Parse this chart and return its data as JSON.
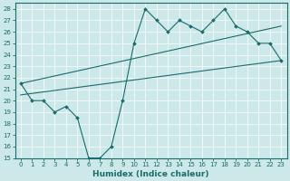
{
  "xlabel": "Humidex (Indice chaleur)",
  "bg_color": "#cce8e8",
  "line_color": "#1a6b6b",
  "grid_color": "#ffffff",
  "xlim": [
    -0.5,
    23.5
  ],
  "ylim": [
    15,
    28.5
  ],
  "xticks": [
    0,
    1,
    2,
    3,
    4,
    5,
    6,
    7,
    8,
    9,
    10,
    11,
    12,
    13,
    14,
    15,
    16,
    17,
    18,
    19,
    20,
    21,
    22,
    23
  ],
  "yticks": [
    15,
    16,
    17,
    18,
    19,
    20,
    21,
    22,
    23,
    24,
    25,
    26,
    27,
    28
  ],
  "line1_x": [
    0,
    1,
    2,
    3,
    4,
    5,
    6,
    7,
    8,
    9,
    10,
    11,
    12,
    13,
    14,
    15,
    16,
    17,
    18,
    19,
    20,
    21,
    22,
    23
  ],
  "line1_y": [
    21.5,
    20,
    20,
    19,
    19.5,
    18.5,
    15,
    15,
    16,
    20,
    25,
    28,
    27,
    26,
    27,
    26.5,
    26,
    27,
    28,
    26.5,
    26,
    25,
    25,
    23.5
  ],
  "line2_x": [
    0,
    23
  ],
  "line2_y": [
    21.5,
    26.5
  ],
  "line3_x": [
    0,
    23
  ],
  "line3_y": [
    20.5,
    23.5
  ],
  "tick_fontsize": 5.0,
  "xlabel_fontsize": 6.5
}
